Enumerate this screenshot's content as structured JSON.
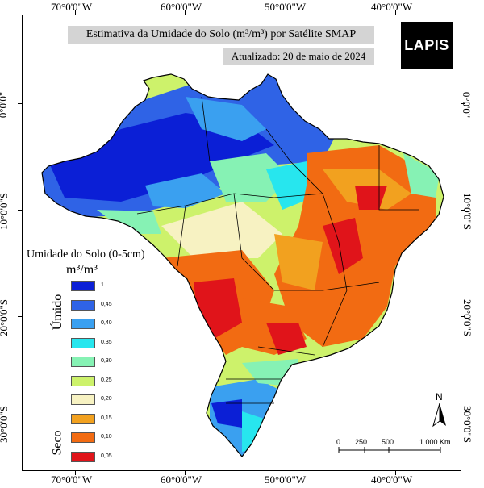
{
  "title": "Estimativa da Umidade do Solo (m³/m³) por Satélite SMAP",
  "updated": "Atualizado: 20 de maio de 2024",
  "logo_text": "LAPIS",
  "top_lon_labels": [
    "70°0'0\"W",
    "60°0'0\"W",
    "50°0'0\"W",
    "40°0'0\"W"
  ],
  "bottom_lon_labels": [
    "70°0'0\"W",
    "60°0'0\"W",
    "50°0'0\"W",
    "40°0'0\"W"
  ],
  "left_lat_labels": [
    "0°0'0\"",
    "10°0'0\"S",
    "20°0'0\"S",
    "30°0'0\"S"
  ],
  "right_lat_labels": [
    "0°0'0\"",
    "10°0'0\"S",
    "20°0'0\"S",
    "30°0'0\"S"
  ],
  "legend": {
    "title": "Umidade do Solo (0-5cm)",
    "unit": "m³/m³",
    "wet_label": "Úmido",
    "dry_label": "Seco",
    "classes": [
      {
        "label": "1",
        "color": "#0b1fd6"
      },
      {
        "label": "0,45",
        "color": "#2f63e6"
      },
      {
        "label": "0,40",
        "color": "#3aa0f0"
      },
      {
        "label": "0,35",
        "color": "#27e6ee"
      },
      {
        "label": "0,30",
        "color": "#86f2b4"
      },
      {
        "label": "0,25",
        "color": "#cdf26b"
      },
      {
        "label": "0,20",
        "color": "#f7f2c2"
      },
      {
        "label": "0,15",
        "color": "#f2a11f"
      },
      {
        "label": "0,10",
        "color": "#f26b12"
      },
      {
        "label": "0,05",
        "color": "#e0141a"
      }
    ]
  },
  "scale_bar": {
    "labels": [
      "0",
      "250",
      "500",
      "1.000 Km"
    ]
  },
  "north_label": "N"
}
